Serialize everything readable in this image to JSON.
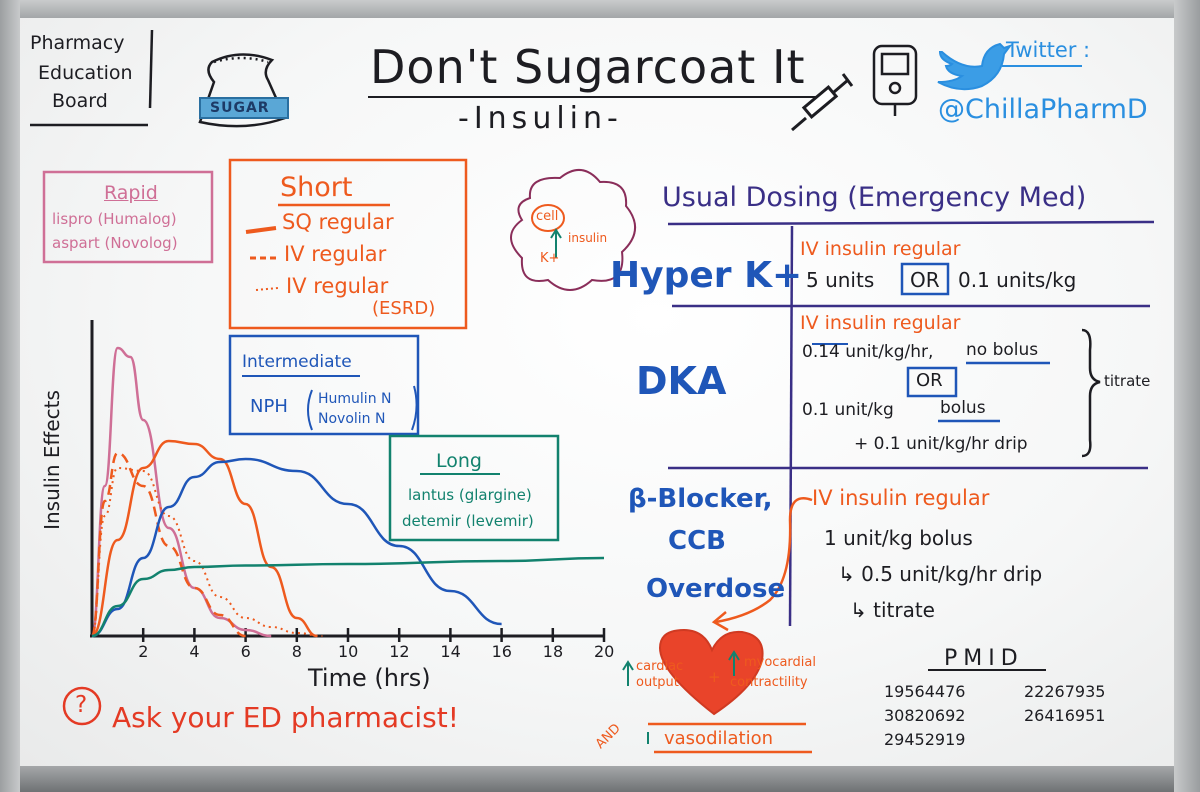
{
  "board": {
    "header": {
      "org_line1": "Pharmacy",
      "org_line2": "Education",
      "org_line3": "Board",
      "sugar_label": "SUGAR",
      "title": "Don't Sugarcoat It",
      "subtitle": "-Insulin-",
      "twitter_label": "Twitter :",
      "twitter_handle": "@ChillaPharmD"
    },
    "rapid": {
      "heading": "Rapid",
      "line1": "lispro (Humalog)",
      "line2": "aspart (Novolog)"
    },
    "short": {
      "heading": "Short",
      "line1": "SQ regular",
      "line2": "IV regular",
      "line3": "IV regular",
      "line4": "(ESRD)"
    },
    "intermediate": {
      "heading": "Intermediate",
      "drug": "NPH",
      "brand1": "Humulin N",
      "brand2": "Novolin N"
    },
    "long": {
      "heading": "Long",
      "line1": "lantus (glargine)",
      "line2": "detemir (levemir)"
    },
    "cell_bubble": {
      "cell": "cell",
      "insulin": "insulin",
      "k": "K+"
    },
    "dosing": {
      "heading": "Usual Dosing (Emergency Med)",
      "hyperk": {
        "label": "Hyper K+",
        "line1": "IV insulin regular",
        "units": "5 units",
        "or": "OR",
        "perkg": "0.1 units/kg"
      },
      "dka": {
        "label": "DKA",
        "line1": "IV insulin regular",
        "rate": "0.14 unit/kg/hr,",
        "no_bolus": "no bolus",
        "or": "OR",
        "bolus_dose": "0.1 unit/kg",
        "bolus": "bolus",
        "drip": "+ 0.1 unit/kg/hr drip",
        "titrate": "titrate"
      },
      "bb": {
        "label1": "β-Blocker,",
        "label2": "CCB",
        "label3": "Overdose",
        "line1": "IV insulin regular",
        "line2": "1 unit/kg bolus",
        "line3": "↳ 0.5 unit/kg/hr drip",
        "line4": "↳ titrate"
      }
    },
    "heart_notes": {
      "cardiac1": "cardiac",
      "cardiac2": "output",
      "plus": "+",
      "myo1": "myocardial",
      "myo2": "contractility",
      "and": "AND",
      "vaso": "vasodilation"
    },
    "pmid": {
      "heading": "PMID",
      "ids": [
        "19564476",
        "22267935",
        "30820692",
        "26416951",
        "29452919"
      ]
    },
    "ask": {
      "icon_symbol": "?",
      "text": "Ask your ED pharmacist!"
    }
  },
  "chart_data": {
    "type": "line",
    "title": "",
    "xlabel": "Time (hrs)",
    "ylabel": "Insulin Effects",
    "xlim": [
      0,
      20
    ],
    "ylim": [
      0,
      10
    ],
    "x_ticks": [
      "2",
      "4",
      "6",
      "8",
      "10",
      "12",
      "14",
      "16",
      "18",
      "20"
    ],
    "series": [
      {
        "name": "Rapid",
        "color": "#cf6f96",
        "style": "solid",
        "points": [
          [
            0,
            0
          ],
          [
            0.5,
            5
          ],
          [
            1,
            9.6
          ],
          [
            1.5,
            9.3
          ],
          [
            2,
            7.2
          ],
          [
            3,
            3.6
          ],
          [
            4,
            1.6
          ],
          [
            5,
            0.6
          ],
          [
            6,
            0.2
          ],
          [
            7,
            0
          ]
        ]
      },
      {
        "name": "SQ regular",
        "color": "#ee5a1e",
        "style": "solid",
        "points": [
          [
            0,
            0
          ],
          [
            1,
            3.2
          ],
          [
            2,
            5.6
          ],
          [
            3,
            6.5
          ],
          [
            4,
            6.4
          ],
          [
            5,
            5.9
          ],
          [
            6,
            4.4
          ],
          [
            7,
            2.3
          ],
          [
            8,
            0.6
          ],
          [
            8.8,
            0
          ]
        ]
      },
      {
        "name": "IV regular",
        "color": "#ee5a1e",
        "style": "dashed",
        "points": [
          [
            0,
            0
          ],
          [
            0.5,
            4.5
          ],
          [
            1,
            6.1
          ],
          [
            2,
            5.0
          ],
          [
            3,
            3.0
          ],
          [
            4,
            1.6
          ],
          [
            5,
            0.7
          ],
          [
            6,
            0
          ]
        ]
      },
      {
        "name": "IV regular (ESRD)",
        "color": "#ee5a1e",
        "style": "dotted",
        "points": [
          [
            0,
            0
          ],
          [
            0.5,
            4.0
          ],
          [
            1,
            5.6
          ],
          [
            2,
            5.5
          ],
          [
            3,
            4.0
          ],
          [
            4,
            2.5
          ],
          [
            5,
            1.3
          ],
          [
            6,
            0.6
          ],
          [
            7,
            0.3
          ],
          [
            8,
            0.1
          ],
          [
            9,
            0
          ]
        ]
      },
      {
        "name": "NPH",
        "color": "#1f56b8",
        "style": "solid",
        "points": [
          [
            0,
            0
          ],
          [
            1,
            0.9
          ],
          [
            2,
            2.6
          ],
          [
            3,
            4.3
          ],
          [
            4,
            5.3
          ],
          [
            5,
            5.8
          ],
          [
            6,
            5.9
          ],
          [
            8,
            5.5
          ],
          [
            10,
            4.4
          ],
          [
            12,
            3.0
          ],
          [
            14,
            1.5
          ],
          [
            16,
            0.4
          ]
        ]
      },
      {
        "name": "Long",
        "color": "#12826e",
        "style": "solid",
        "points": [
          [
            0,
            0
          ],
          [
            1,
            1.0
          ],
          [
            2,
            1.9
          ],
          [
            3,
            2.2
          ],
          [
            4,
            2.3
          ],
          [
            6,
            2.35
          ],
          [
            10,
            2.4
          ],
          [
            16,
            2.5
          ],
          [
            20,
            2.6
          ]
        ]
      }
    ]
  }
}
